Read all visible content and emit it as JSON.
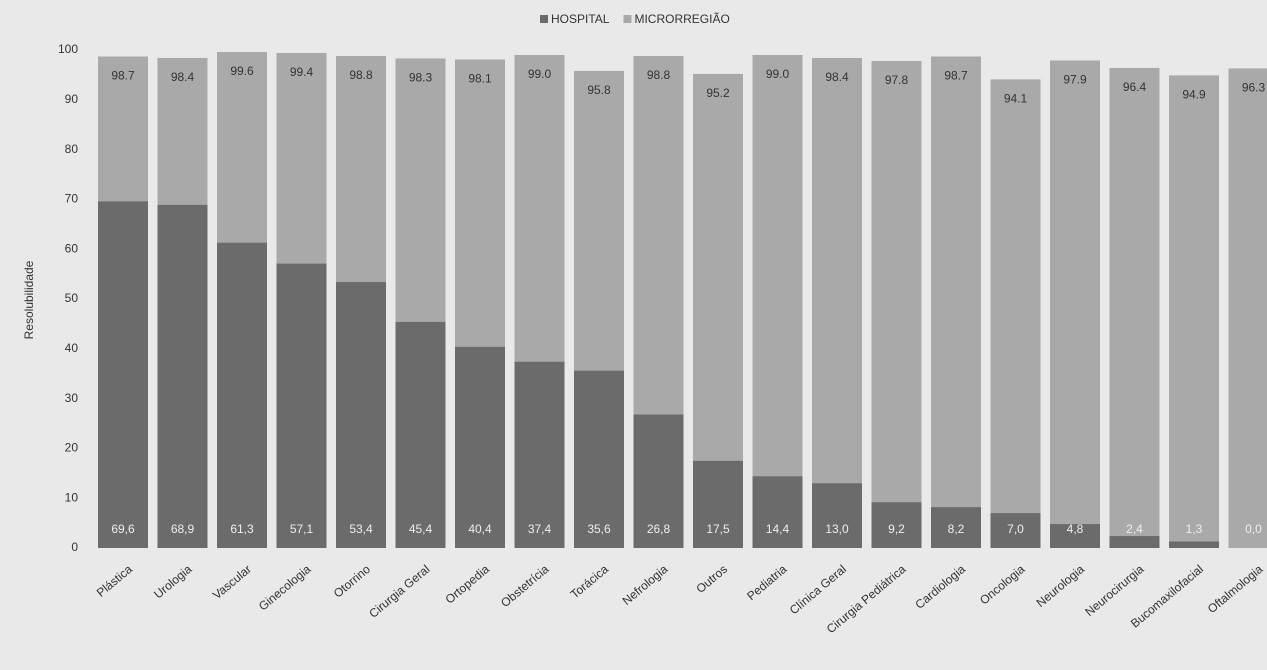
{
  "chart_data": {
    "type": "bar",
    "y_label": "Resolubilidade",
    "categories": [
      "Plástica",
      "Urologia",
      "Vascular",
      "Ginecologia",
      "Otorrino",
      "Cirurgia Geral",
      "Ortopedia",
      "Obstetrícia",
      "Torácica",
      "Nefrologia",
      "Outros",
      "Pediatria",
      "Clínica Geral",
      "Cirurgia Pediátrica",
      "Cardiologia",
      "Oncologia",
      "Neurologia",
      "Neurocirurgia",
      "Bucomaxilofacial",
      "Oftalmologia"
    ],
    "series": [
      {
        "name": "HOSPITAL",
        "color": "#6b6b6b",
        "values": [
          69.6,
          68.9,
          61.3,
          57.1,
          53.4,
          45.4,
          40.4,
          37.4,
          35.6,
          26.8,
          17.5,
          14.4,
          13.0,
          9.2,
          8.2,
          7.0,
          4.8,
          2.4,
          1.3,
          0.0
        ],
        "value_labels": [
          "69,6",
          "68,9",
          "61,3",
          "57,1",
          "53,4",
          "45,4",
          "40,4",
          "37,4",
          "35,6",
          "26,8",
          "17,5",
          "14,4",
          "13,0",
          "9,2",
          "8,2",
          "7,0",
          "4,8",
          "2,4",
          "1,3",
          "0,0"
        ]
      },
      {
        "name": "MICRORREGIÃO",
        "color": "#a9a9a9",
        "values": [
          98.7,
          98.4,
          99.6,
          99.4,
          98.8,
          98.3,
          98.1,
          99.0,
          95.8,
          98.8,
          95.2,
          99.0,
          98.4,
          97.8,
          98.7,
          94.1,
          97.9,
          96.4,
          94.9,
          96.3
        ],
        "value_labels": [
          "98.7",
          "98.4",
          "99.6",
          "99.4",
          "98.8",
          "98.3",
          "98.1",
          "99.0",
          "95.8",
          "98.8",
          "95.2",
          "99.0",
          "98.4",
          "97.8",
          "98.7",
          "94.1",
          "97.9",
          "96.4",
          "94.9",
          "96.3"
        ]
      }
    ],
    "ylim": [
      0,
      100
    ],
    "yticks": [
      0,
      10,
      20,
      30,
      40,
      50,
      60,
      70,
      80,
      90,
      100
    ],
    "legend": "top",
    "grid": false
  }
}
